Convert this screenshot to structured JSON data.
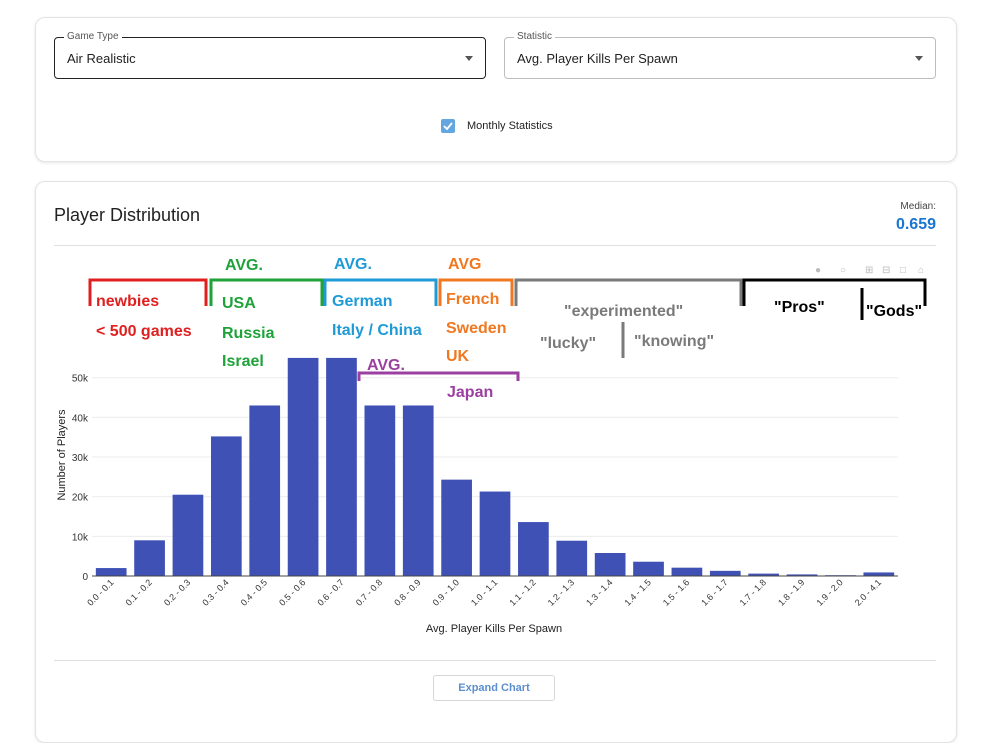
{
  "filters": {
    "game_type": {
      "label": "Game Type",
      "value": "Air Realistic"
    },
    "statistic": {
      "label": "Statistic",
      "value": "Avg. Player Kills Per Spawn"
    },
    "monthly": {
      "label": "Monthly Statistics",
      "checked": true
    }
  },
  "panel": {
    "title": "Player Distribution",
    "median_label": "Median:",
    "median_value": "0.659",
    "expand_label": "Expand Chart"
  },
  "colors": {
    "bar": "#3f51b5",
    "accent": "#1976d2",
    "anno_red": "#e02020",
    "anno_green": "#1fa23a",
    "anno_blue": "#1e9ad6",
    "anno_orange": "#f07820",
    "anno_purple": "#9b3fa0",
    "anno_gray": "#7a7a7a",
    "anno_black": "#000000"
  },
  "chart_data": {
    "type": "bar",
    "title": "",
    "xlabel": "Avg. Player Kills Per Spawn",
    "ylabel": "Number of Players",
    "ylim": [
      0,
      58000
    ],
    "yticks": [
      {
        "v": 0,
        "label": "0"
      },
      {
        "v": 10000,
        "label": "10k"
      },
      {
        "v": 20000,
        "label": "20k"
      },
      {
        "v": 30000,
        "label": "30k"
      },
      {
        "v": 40000,
        "label": "40k"
      },
      {
        "v": 50000,
        "label": "50k"
      }
    ],
    "grid": true,
    "categories": [
      "0.0 - 0.1",
      "0.1 - 0.2",
      "0.2 - 0.3",
      "0.3 - 0.4",
      "0.4 - 0.5",
      "0.5 - 0.6",
      "0.6 - 0.7",
      "0.7 - 0.8",
      "0.8 - 0.9",
      "0.9 - 1.0",
      "1.0 - 1.1",
      "1.1 - 1.2",
      "1.2 - 1.3",
      "1.3 - 1.4",
      "1.4 - 1.5",
      "1.5 - 1.6",
      "1.6 - 1.7",
      "1.7 - 1.8",
      "1.8 - 1.9",
      "1.9 - 2.0",
      "2.0 - 4.1"
    ],
    "values": [
      2000,
      9000,
      20500,
      35200,
      43000,
      55000,
      55000,
      43000,
      43000,
      24300,
      21300,
      13600,
      8900,
      5800,
      3600,
      2100,
      1300,
      600,
      400,
      200,
      900
    ]
  },
  "annotations": {
    "red": [
      "newbies",
      "< 500 games"
    ],
    "green": [
      "AVG.",
      "USA",
      "Russia",
      "Israel"
    ],
    "blue": [
      "AVG.",
      "German",
      "Italy / China"
    ],
    "orange": [
      "AVG",
      "French",
      "Sweden",
      "UK"
    ],
    "purple": [
      "AVG.",
      "Japan"
    ],
    "gray": [
      "\"experimented\"",
      "\"lucky\"",
      "\"knowing\""
    ],
    "black": [
      "\"Pros\"",
      "\"Gods\""
    ]
  }
}
